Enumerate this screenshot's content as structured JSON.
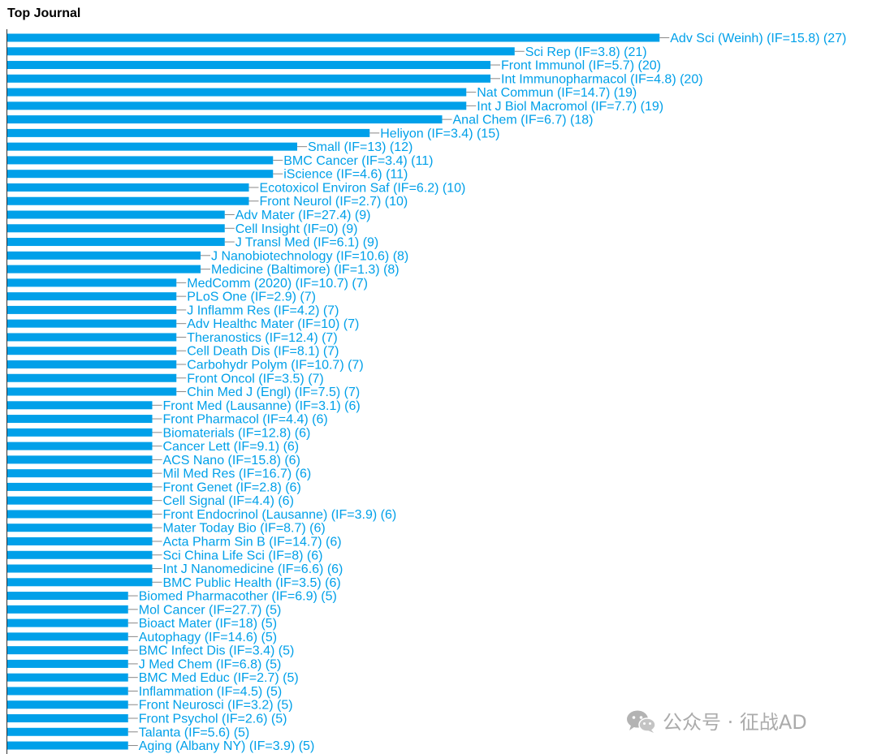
{
  "chart_data": {
    "type": "bar",
    "orientation": "horizontal",
    "title": "Top Journal",
    "color": "#00a0e9",
    "label_color": "#00a0e9",
    "xlim": [
      0,
      27
    ],
    "categories": [
      "Adv Sci (Weinh) (IF=15.8)",
      "Sci Rep (IF=3.8)",
      "Front Immunol (IF=5.7)",
      "Int Immunopharmacol (IF=4.8)",
      "Nat Commun (IF=14.7)",
      "Int J Biol Macromol (IF=7.7)",
      "Anal Chem (IF=6.7)",
      "Heliyon (IF=3.4)",
      "Small (IF=13)",
      "BMC Cancer (IF=3.4)",
      "iScience (IF=4.6)",
      "Ecotoxicol Environ Saf (IF=6.2)",
      "Front Neurol (IF=2.7)",
      "Adv Mater (IF=27.4)",
      "Cell Insight (IF=0)",
      "J Transl Med (IF=6.1)",
      "J Nanobiotechnology (IF=10.6)",
      "Medicine (Baltimore) (IF=1.3)",
      "MedComm (2020) (IF=10.7)",
      "PLoS One (IF=2.9)",
      "J Inflamm Res (IF=4.2)",
      "Adv Healthc Mater (IF=10)",
      "Theranostics (IF=12.4)",
      "Cell Death Dis (IF=8.1)",
      "Carbohydr Polym (IF=10.7)",
      "Front Oncol (IF=3.5)",
      "Chin Med J (Engl) (IF=7.5)",
      "Front Med (Lausanne) (IF=3.1)",
      "Front Pharmacol (IF=4.4)",
      "Biomaterials (IF=12.8)",
      "Cancer Lett (IF=9.1)",
      "ACS Nano (IF=15.8)",
      "Mil Med Res (IF=16.7)",
      "Front Genet (IF=2.8)",
      "Cell Signal (IF=4.4)",
      "Front Endocrinol (Lausanne) (IF=3.9)",
      "Mater Today Bio (IF=8.7)",
      "Acta Pharm Sin B (IF=14.7)",
      "Sci China Life Sci (IF=8)",
      "Int J Nanomedicine (IF=6.6)",
      "BMC Public Health (IF=3.5)",
      "Biomed Pharmacother (IF=6.9)",
      "Mol Cancer (IF=27.7)",
      "Bioact Mater (IF=18)",
      "Autophagy (IF=14.6)",
      "BMC Infect Dis (IF=3.4)",
      "J Med Chem (IF=6.8)",
      "BMC Med Educ (IF=2.7)",
      "Inflammation (IF=4.5)",
      "Front Neurosci (IF=3.2)",
      "Front Psychol (IF=2.6)",
      "Talanta (IF=5.6)",
      "Aging (Albany NY) (IF=3.9)"
    ],
    "values": [
      27,
      21,
      20,
      20,
      19,
      19,
      18,
      15,
      12,
      11,
      11,
      10,
      10,
      9,
      9,
      9,
      8,
      8,
      7,
      7,
      7,
      7,
      7,
      7,
      7,
      7,
      7,
      6,
      6,
      6,
      6,
      6,
      6,
      6,
      6,
      6,
      6,
      6,
      6,
      6,
      6,
      5,
      5,
      5,
      5,
      5,
      5,
      5,
      5,
      5,
      5,
      5,
      5
    ]
  },
  "watermark": {
    "icon": "wechat-icon",
    "text": "公众号 · 征战AD"
  }
}
